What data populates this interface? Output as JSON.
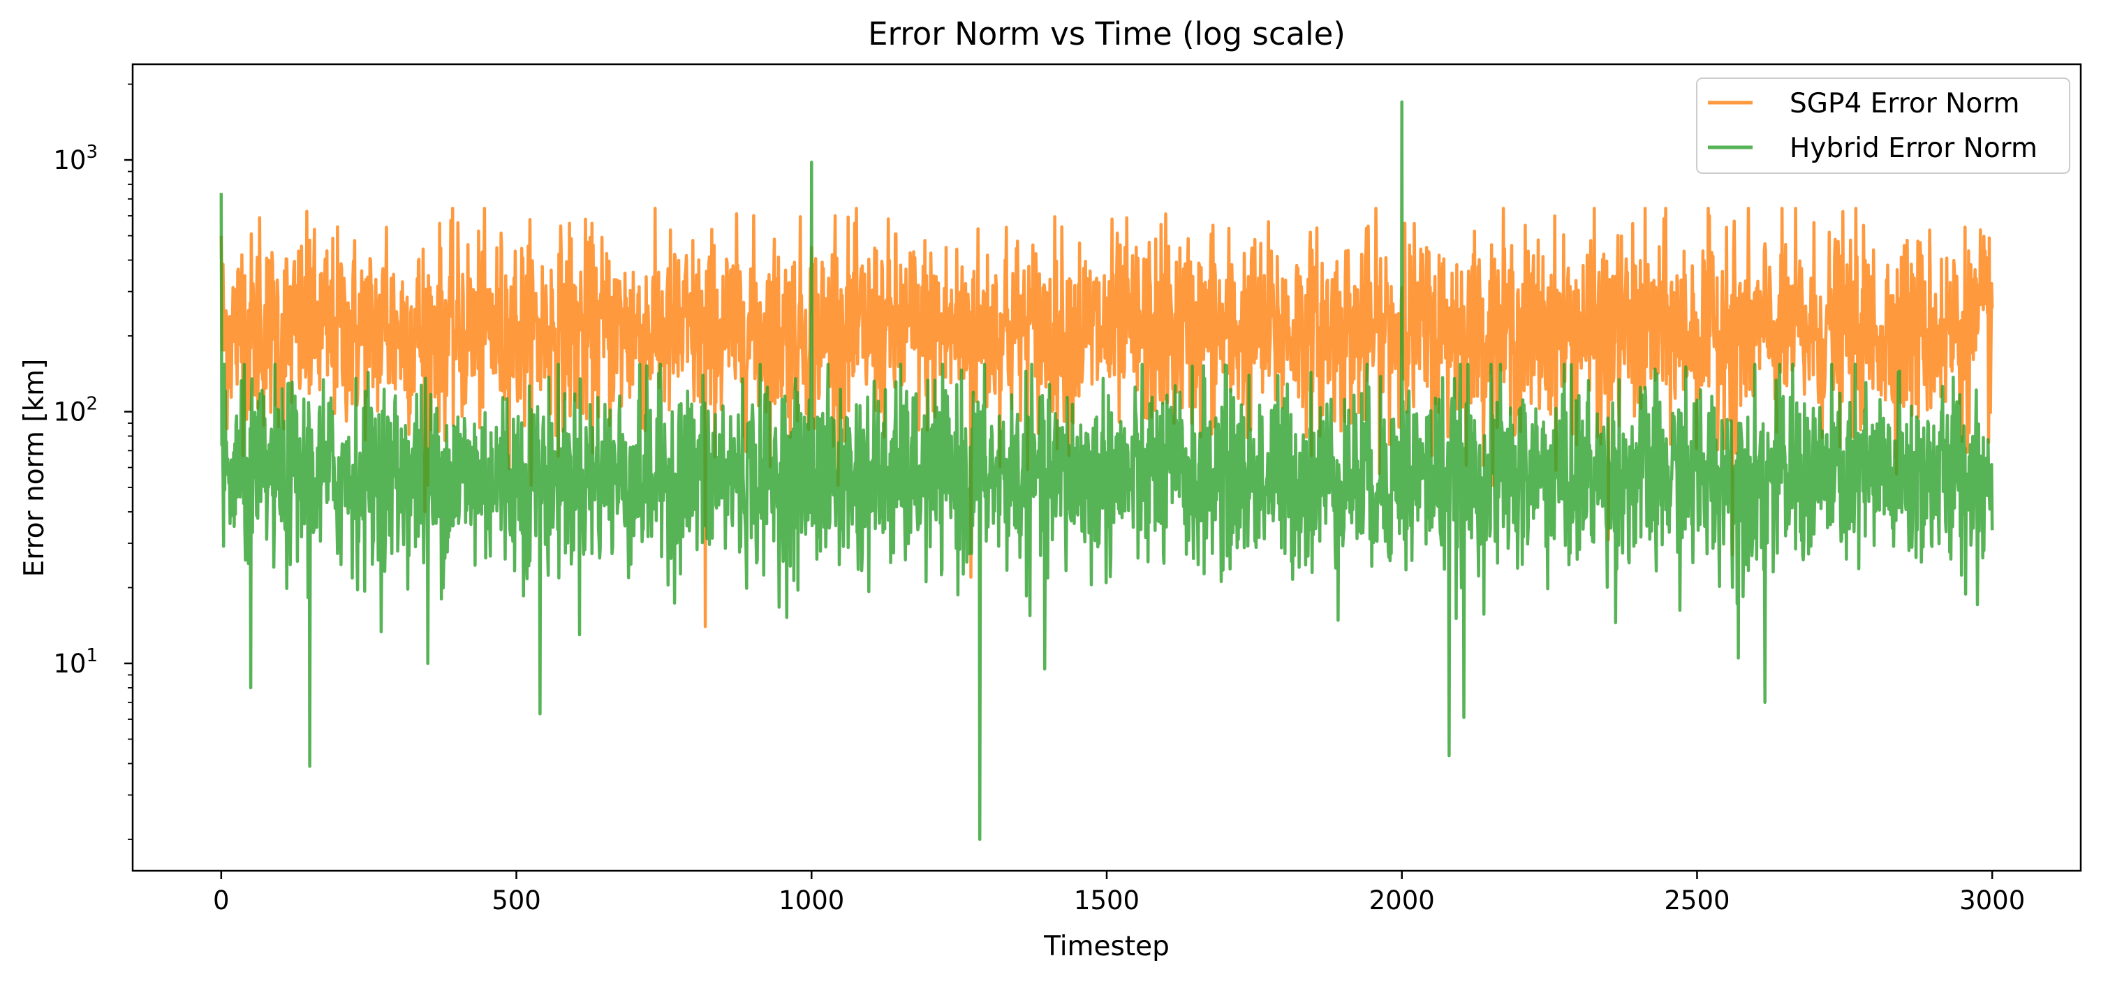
{
  "chart_data": {
    "type": "line",
    "title": "Error Norm vs Time (log scale)",
    "xlabel": "Timestep",
    "ylabel": "Error norm [km]",
    "xlim": [
      -150,
      3150
    ],
    "ylim": [
      1.5,
      2400
    ],
    "yscale": "log",
    "grid": false,
    "legend_position": "top-right",
    "x_ticks": [
      0,
      500,
      1000,
      1500,
      2000,
      2500,
      3000
    ],
    "x_tick_labels": [
      "0",
      "500",
      "1000",
      "1500",
      "2000",
      "2500",
      "3000"
    ],
    "y_major_ticks": [
      10,
      100,
      1000
    ],
    "y_tick_labels": [
      {
        "base": "10",
        "exp": "1"
      },
      {
        "base": "10",
        "exp": "2"
      },
      {
        "base": "10",
        "exp": "3"
      }
    ],
    "series": [
      {
        "name": "SGP4 Error Norm",
        "color": "#ff7f0e",
        "opacity": 0.8,
        "n": 3001,
        "typical_range": [
          80,
          500
        ],
        "median": 210,
        "spikes": [
          {
            "x": 0,
            "y": 500
          },
          {
            "x": 35,
            "y": 420
          },
          {
            "x": 65,
            "y": 590
          },
          {
            "x": 150,
            "y": 480
          },
          {
            "x": 280,
            "y": 540
          },
          {
            "x": 345,
            "y": 40
          },
          {
            "x": 590,
            "y": 560
          },
          {
            "x": 820,
            "y": 14
          },
          {
            "x": 1000,
            "y": 450
          },
          {
            "x": 1040,
            "y": 600
          },
          {
            "x": 1270,
            "y": 22
          },
          {
            "x": 1330,
            "y": 540
          },
          {
            "x": 1600,
            "y": 610
          },
          {
            "x": 1680,
            "y": 550
          },
          {
            "x": 2005,
            "y": 560
          },
          {
            "x": 2350,
            "y": 31
          },
          {
            "x": 2550,
            "y": 540
          },
          {
            "x": 2560,
            "y": 27
          },
          {
            "x": 2995,
            "y": 490
          }
        ]
      },
      {
        "name": "Hybrid Error Norm",
        "color": "#2ca02c",
        "opacity": 0.8,
        "n": 3001,
        "typical_range": [
          20,
          120
        ],
        "median": 55,
        "spikes": [
          {
            "x": 0,
            "y": 740
          },
          {
            "x": 50,
            "y": 8
          },
          {
            "x": 150,
            "y": 3.9
          },
          {
            "x": 350,
            "y": 10
          },
          {
            "x": 540,
            "y": 6.3
          },
          {
            "x": 1000,
            "y": 980
          },
          {
            "x": 1285,
            "y": 2.0
          },
          {
            "x": 1395,
            "y": 9.5
          },
          {
            "x": 2000,
            "y": 1700
          },
          {
            "x": 2080,
            "y": 4.3
          },
          {
            "x": 2105,
            "y": 6.1
          },
          {
            "x": 2615,
            "y": 7.0
          },
          {
            "x": 2570,
            "y": 10.5
          }
        ]
      }
    ]
  }
}
